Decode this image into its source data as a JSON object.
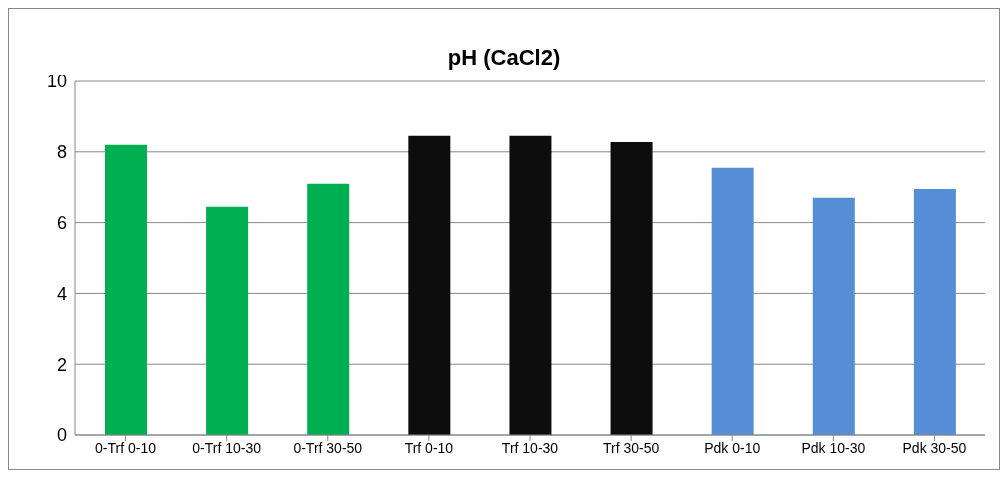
{
  "chart_data": {
    "type": "bar",
    "title": "pH (CaCl2)",
    "categories": [
      "0-Trf 0-10",
      "0-Trf 10-30",
      "0-Trf 30-50",
      "Trf 0-10",
      "Trf 10-30",
      "Trf 30-50",
      "Pdk 0-10",
      "Pdk 10-30",
      "Pdk 30-50"
    ],
    "values": [
      8.2,
      6.45,
      7.1,
      8.45,
      8.45,
      8.28,
      7.55,
      6.7,
      6.95
    ],
    "colors": [
      "#00b050",
      "#00b050",
      "#00b050",
      "#0d0d0d",
      "#0d0d0d",
      "#0d0d0d",
      "#558ed5",
      "#558ed5",
      "#558ed5"
    ],
    "ylim": [
      0,
      10
    ],
    "yticks": [
      0,
      2,
      4,
      6,
      8,
      10
    ],
    "grid": "y",
    "legend": false
  }
}
